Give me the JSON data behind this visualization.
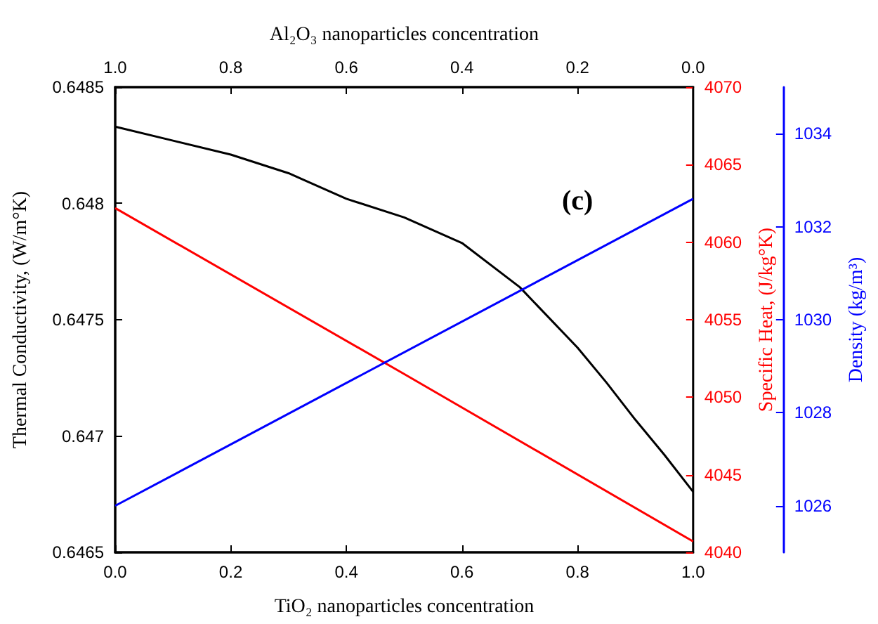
{
  "chart_data": {
    "type": "line",
    "xlabel": "TiO₂ nanoparticles concentration",
    "x2label": "Al₂O₃ nanoparticles concentration",
    "ylabel": "Thermal Conductivity, (W/m°K)",
    "y2label": "Specific Heat, (J/kg°K)",
    "y3label": "Density (kg/m³)",
    "annotations": [
      "(c)"
    ],
    "xlim": [
      0,
      1
    ],
    "xticks": [
      {
        "value": 0,
        "label": "0.0"
      },
      0.2,
      0.4,
      0.6,
      0.8,
      {
        "value": 1,
        "label": "1.0"
      }
    ],
    "x2lim": [
      1,
      0
    ],
    "x2ticks": [
      {
        "value": 1,
        "label": "1.0"
      },
      0.8,
      0.6,
      0.4,
      0.2,
      {
        "value": 0,
        "label": "0.0"
      }
    ],
    "ylim": [
      0.6465,
      0.6485
    ],
    "yticks": [
      0.6465,
      0.647,
      0.6475,
      0.648,
      0.6485
    ],
    "y2lim": [
      4040,
      4070
    ],
    "y2ticks": [
      4040,
      4045,
      4050,
      4055,
      4060,
      4065,
      4070
    ],
    "y3lim": [
      1025,
      1035
    ],
    "y3ticks": [
      1026,
      1028,
      1030,
      1032,
      1034
    ],
    "grid": false,
    "marker": "none",
    "line_style": "solid",
    "series": [
      {
        "color": "#000000",
        "x": [
          0,
          0.1,
          0.2,
          0.3,
          0.4,
          0.5,
          0.6,
          0.7,
          0.8,
          0.85,
          0.9,
          0.95,
          1
        ],
        "values": [
          0.64833,
          0.64827,
          0.64821,
          0.64813,
          0.64802,
          0.64794,
          0.64783,
          0.64764,
          0.64738,
          0.64723,
          0.64707,
          0.64692,
          0.64676
        ]
      },
      {
        "color": "#ff0000",
        "axis": "y2",
        "x": [
          0,
          0.5,
          1
        ],
        "values": [
          4062.2,
          4051.5,
          4040.7
        ]
      },
      {
        "color": "#0000ff",
        "axis": "y3",
        "x": [
          0,
          1
        ],
        "values": [
          1026.0,
          1032.6
        ]
      }
    ]
  }
}
